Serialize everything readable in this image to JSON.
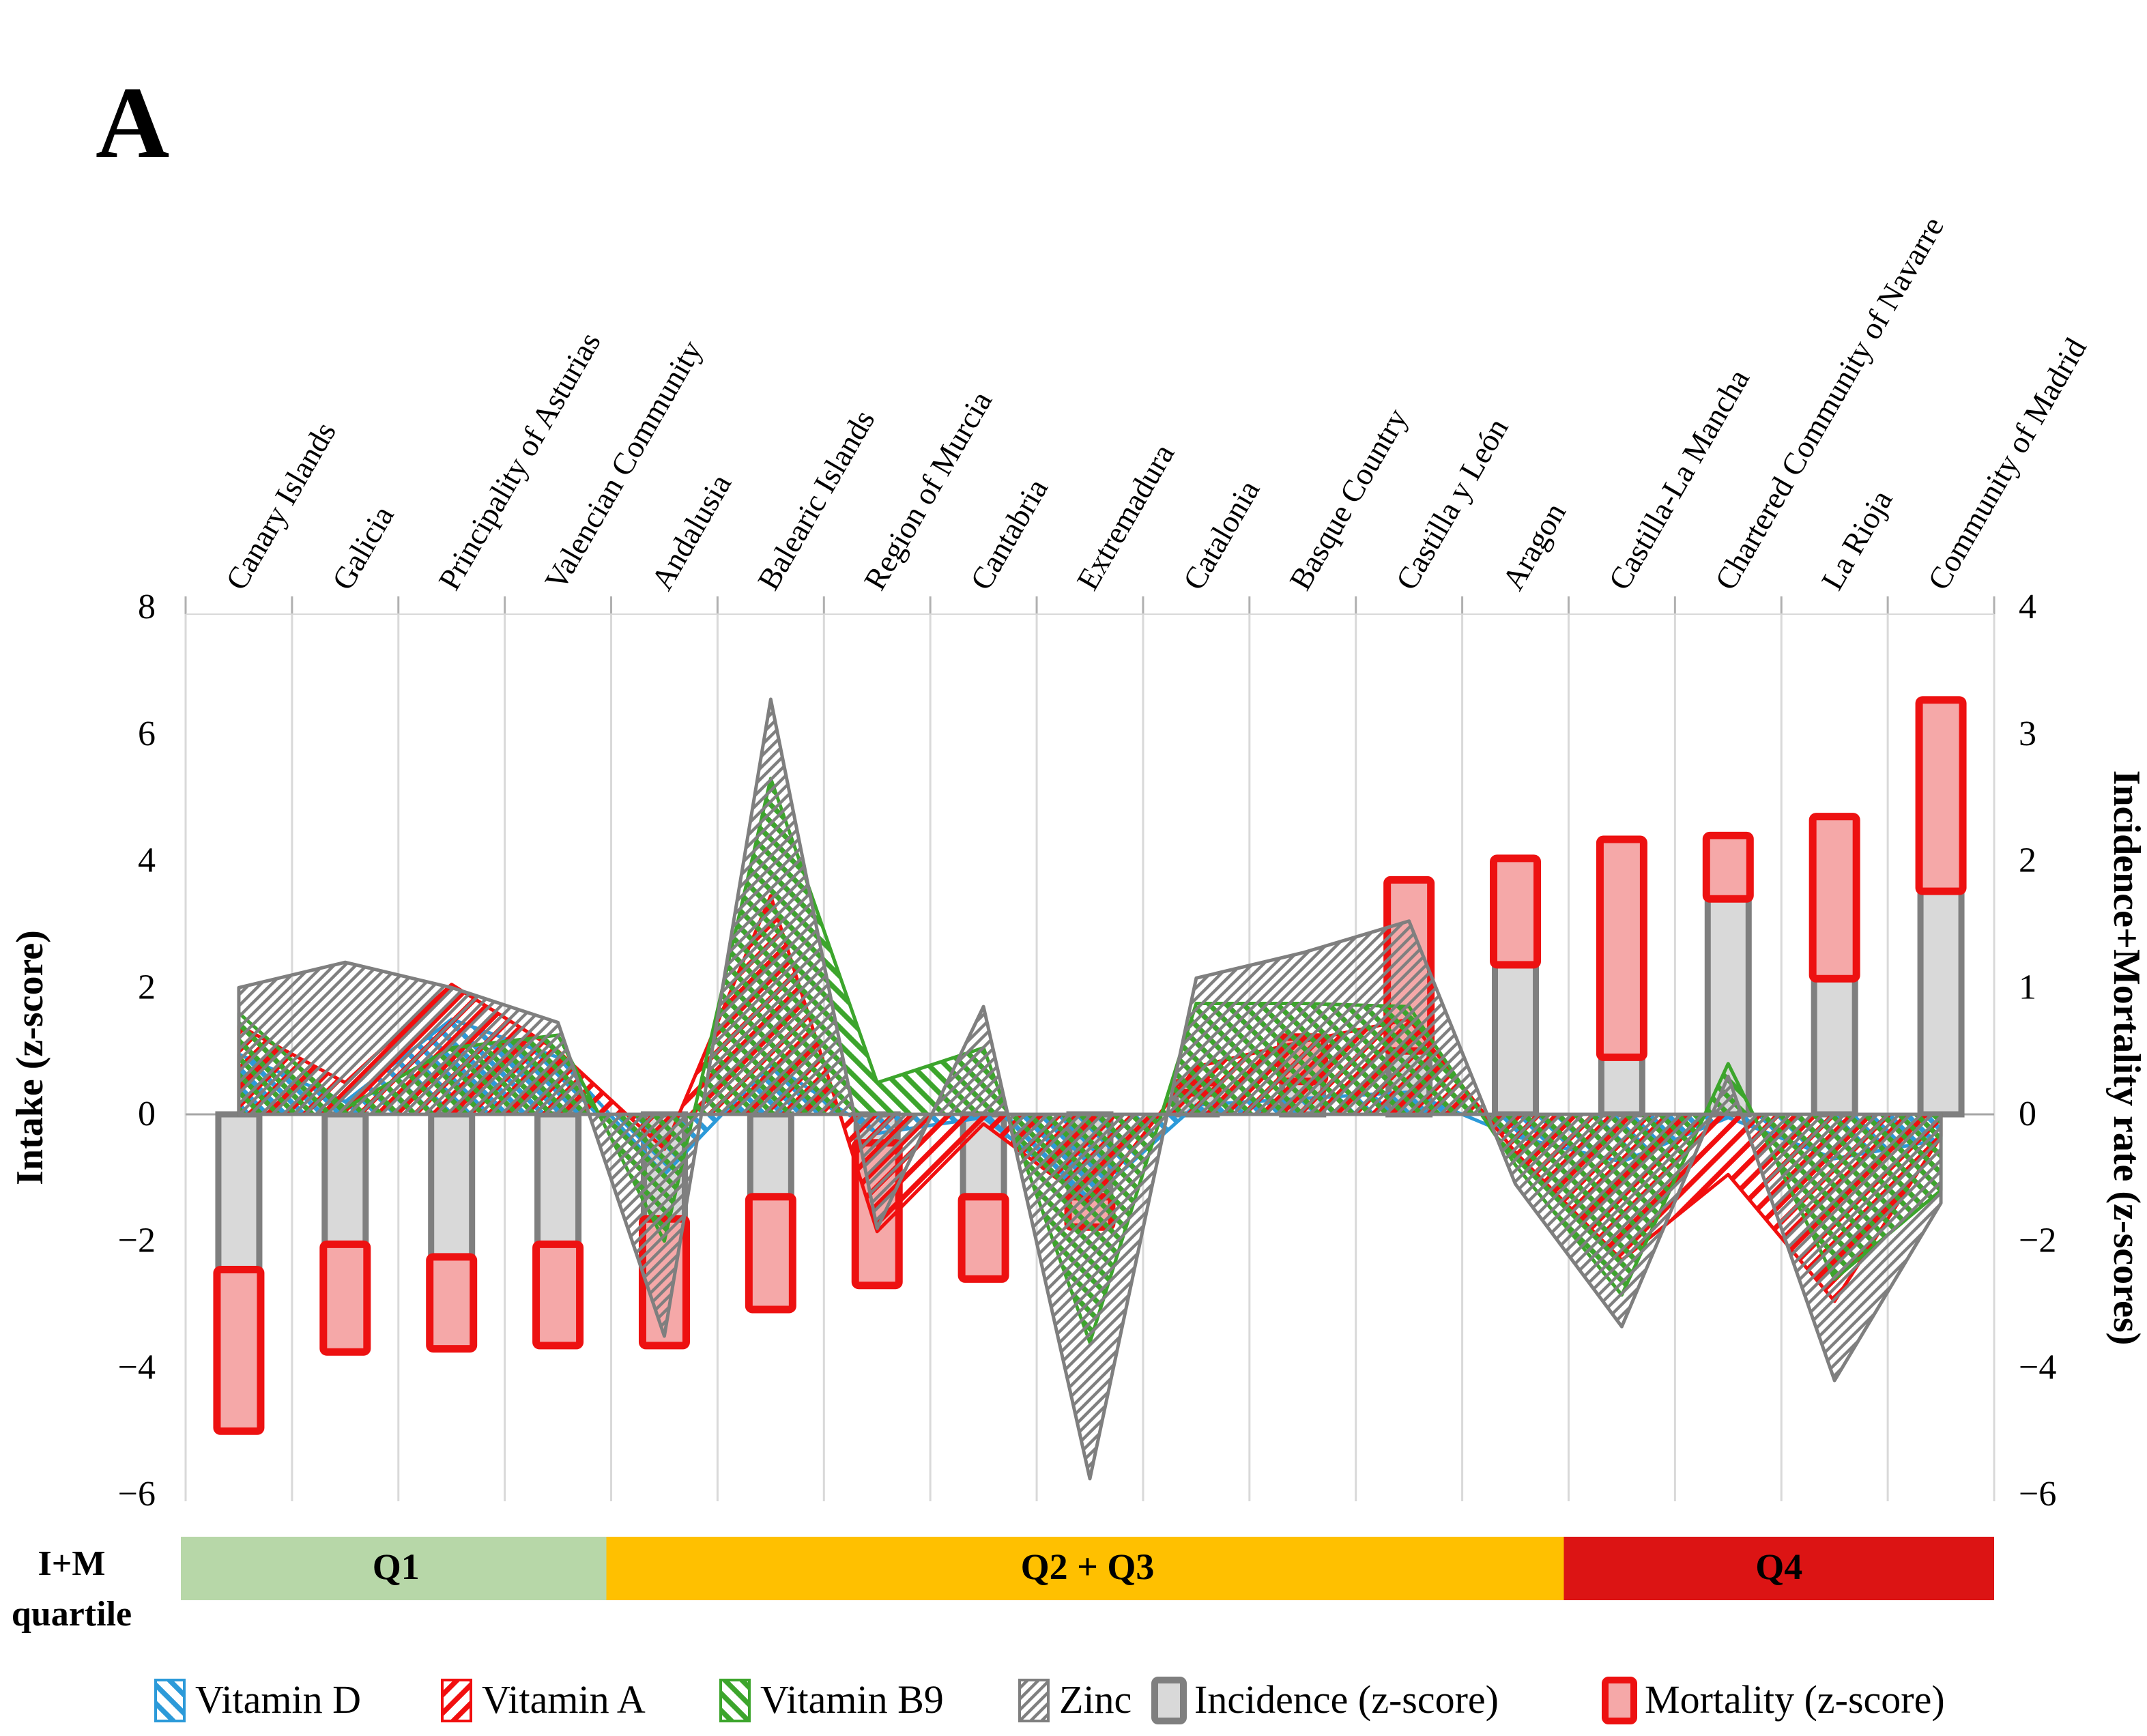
{
  "panel_label": "A",
  "axes": {
    "left": {
      "title": "Intake (z-score)",
      "ticks": [
        "8",
        "6",
        "4",
        "2",
        "0",
        "−2",
        "−4",
        "−6"
      ],
      "tick_values": [
        8,
        6,
        4,
        2,
        0,
        -2,
        -4,
        -6
      ]
    },
    "right": {
      "title": "Incidence+Mortality rate (z-scores)",
      "ticks": [
        "4",
        "3",
        "2",
        "1",
        "0",
        "−2",
        "−4",
        "−6"
      ],
      "tick_values": [
        4,
        3,
        2,
        1,
        0,
        -2,
        -4,
        -6
      ]
    }
  },
  "quartile_band": {
    "row_label_line1": "I+M",
    "row_label_line2": "quartile",
    "segments": [
      {
        "label": "Q1",
        "color": "#b7d7a8",
        "from_col": 1,
        "to_col": 4
      },
      {
        "label": "Q2 + Q3",
        "color": "#ffc000",
        "from_col": 5,
        "to_col": 13
      },
      {
        "label": "Q4",
        "color": "#dc1414",
        "from_col": 14,
        "to_col": 17
      }
    ]
  },
  "legend": [
    {
      "key": "vitamin_d",
      "label": "Vitamin D",
      "type": "hatch",
      "color": "#2c9ad9",
      "hatch": "backslash"
    },
    {
      "key": "vitamin_a",
      "label": "Vitamin A",
      "type": "hatch",
      "color": "#f10f0f",
      "hatch": "slash"
    },
    {
      "key": "vitamin_b9",
      "label": "Vitamin B9",
      "type": "hatch",
      "color": "#3ca52c",
      "hatch": "backslash"
    },
    {
      "key": "zinc",
      "label": "Zinc",
      "type": "hatch",
      "color": "#7f7f7f",
      "hatch": "slash-thin"
    },
    {
      "key": "incidence",
      "label": "Incidence (z-score)",
      "type": "bar",
      "fill": "#d9d9d9",
      "border": "#7f7f7f"
    },
    {
      "key": "mortality",
      "label": "Mortality (z-score)",
      "type": "bar",
      "fill": "#f5a8a8",
      "border": "#ed1111"
    }
  ],
  "chart_data": {
    "type": "combo (hatched area series on left axis + stacked bars on right axis)",
    "categories": [
      "Canary Islands",
      "Galicia",
      "Principality of Asturias",
      "Valencian Community",
      "Andalusia",
      "Balearic Islands",
      "Region of Murcia",
      "Cantabria",
      "Extremadura",
      "Catalonia",
      "Basque Country",
      "Castilla y León",
      "Aragon",
      "Castilla-La Mancha",
      "Chartered Community of Navarre",
      "La Rioja",
      "Community of Madrid"
    ],
    "series": [
      {
        "name": "Vitamin D",
        "axis": "left",
        "style": "area-hatch-backslash",
        "color": "#2c9ad9",
        "values": [
          0.95,
          0.2,
          1.5,
          0.9,
          -0.95,
          0.8,
          -0.3,
          -0.05,
          -1.35,
          0.15,
          0.25,
          0.35,
          -0.35,
          -0.75,
          -0.05,
          -0.7,
          -0.4
        ]
      },
      {
        "name": "Vitamin A",
        "axis": "left",
        "style": "area-hatch-slash",
        "color": "#f10f0f",
        "values": [
          1.4,
          0.5,
          2.05,
          1.0,
          -0.55,
          3.45,
          -1.85,
          -0.15,
          -1.4,
          0.75,
          1.15,
          1.5,
          -0.6,
          -2.3,
          -0.95,
          -2.95,
          -0.35
        ]
      },
      {
        "name": "Vitamin B9",
        "axis": "left",
        "style": "area-hatch-backslash",
        "color": "#3ca52c",
        "values": [
          1.6,
          0.1,
          1.05,
          1.25,
          -2.0,
          5.3,
          0.5,
          1.05,
          -3.6,
          1.75,
          1.75,
          1.7,
          -0.8,
          -2.85,
          0.8,
          -2.6,
          -1.2
        ]
      },
      {
        "name": "Zinc",
        "axis": "left",
        "style": "area-hatch-slash-thin",
        "color": "#7f7f7f",
        "values": [
          2.0,
          2.4,
          2.0,
          1.45,
          -3.5,
          6.55,
          -1.8,
          1.7,
          -5.75,
          2.15,
          2.55,
          3.05,
          -1.1,
          -3.35,
          0.6,
          -4.2,
          -1.4
        ]
      }
    ],
    "bar_series": {
      "stacked": true,
      "axis": "right",
      "incidence": {
        "name": "Incidence (z-score)",
        "fill": "#d9d9d9",
        "border": "#7f7f7f",
        "values": [
          -2.45,
          -2.05,
          -2.25,
          -2.05,
          -1.65,
          -1.3,
          -0.45,
          -1.3,
          -1.3,
          0.17,
          0.26,
          0.5,
          1.18,
          0.45,
          1.7,
          1.07,
          1.76
        ]
      },
      "mortality": {
        "name": "Mortality (z-score)",
        "fill": "#f5a8a8",
        "border": "#ed1111",
        "values": [
          -2.55,
          -1.7,
          -1.45,
          -1.6,
          -2.0,
          -1.78,
          -2.25,
          -1.3,
          -0.48,
          0.08,
          0.35,
          1.35,
          0.84,
          1.72,
          0.5,
          1.28,
          1.51
        ]
      }
    },
    "xlabel": "",
    "ylabel_left": "Intake (z-score)",
    "ylabel_right": "Incidence+Mortality rate (z-scores)",
    "ylim_left": [
      -6,
      8
    ],
    "right_axis_note": "right tick labels 4,3,2,1,0,−2,−4,−6 sit on the same gridlines as left 8,6,4,2,0,−2,−4,−6 (above zero 1 right unit = 2 left units; below zero equal)",
    "grid": "vertical category gridlines only",
    "legend_position": "bottom"
  },
  "colors": {
    "gridline": "#d9d9d9",
    "zero_line": "#a6a6a6",
    "tick_text": "#000000"
  }
}
